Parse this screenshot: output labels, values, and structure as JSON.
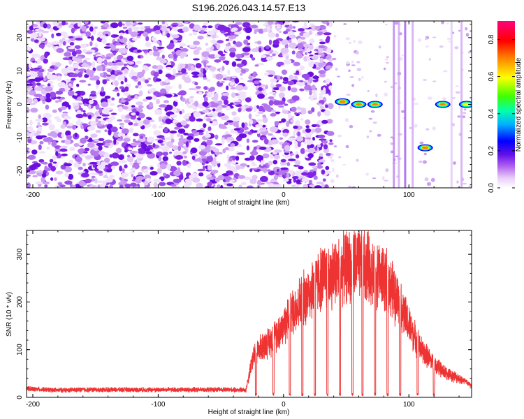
{
  "title": "S196.2026.043.14.57.E13",
  "chart_data": [
    {
      "type": "heatmap",
      "xlabel": "Height of straight line (km)",
      "ylabel": "Frequency (Hz)",
      "xlim": [
        -205,
        150
      ],
      "ylim": [
        -25,
        25
      ],
      "xticks": [
        -200,
        -100,
        0,
        100
      ],
      "yticks": [
        -20,
        -10,
        0,
        10,
        20
      ],
      "colorbar": {
        "label": "Normalized spectral amplitude",
        "range": [
          0,
          0.9
        ],
        "ticks": [
          0.0,
          0.2,
          0.4,
          0.6,
          0.8
        ],
        "colormap": [
          "#ffffff",
          "#e4c8f7",
          "#a050f0",
          "#6010e8",
          "#0000ff",
          "#00c0ff",
          "#00ff80",
          "#80ff00",
          "#ffff00",
          "#ff8000",
          "#ff0000",
          "#ff0080"
        ]
      },
      "noise_region_km": [
        -205,
        38
      ],
      "signal_blobs": [
        {
          "x": 47,
          "y": 0.8,
          "amp": 0.85
        },
        {
          "x": 60,
          "y": 0,
          "amp": 0.9
        },
        {
          "x": 73,
          "y": 0,
          "amp": 0.9
        },
        {
          "x": 113,
          "y": -13,
          "amp": 0.8
        },
        {
          "x": 127,
          "y": 0,
          "amp": 0.85
        },
        {
          "x": 146,
          "y": 0,
          "amp": 0.6
        }
      ]
    },
    {
      "type": "line",
      "xlabel": "Height of straight line (km)",
      "ylabel": "SNR (10 * v/v)",
      "xlim": [
        -205,
        150
      ],
      "ylim": [
        0,
        350
      ],
      "xticks": [
        -200,
        -100,
        0,
        100
      ],
      "yticks": [
        0,
        100,
        200,
        300
      ],
      "series": [
        {
          "color": "#ee3333",
          "x": [
            -205,
            -180,
            -160,
            -140,
            -120,
            -100,
            -80,
            -60,
            -40,
            -30,
            -25,
            -20,
            -10,
            0,
            10,
            20,
            30,
            40,
            50,
            60,
            70,
            80,
            90,
            100,
            110,
            120,
            130,
            140,
            150
          ],
          "values": [
            18,
            15,
            16,
            16,
            16,
            16,
            16,
            16,
            16,
            15,
            80,
            100,
            120,
            150,
            190,
            220,
            250,
            260,
            275,
            280,
            270,
            250,
            210,
            150,
            100,
            70,
            50,
            40,
            25
          ]
        }
      ],
      "dropouts_km": [
        -22,
        -8,
        5,
        15,
        25,
        35,
        45,
        55,
        63,
        73,
        83,
        93,
        107,
        120
      ]
    }
  ]
}
